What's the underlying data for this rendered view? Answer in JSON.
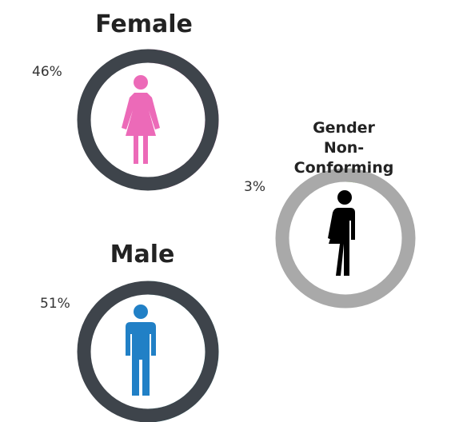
{
  "chart_data": [
    {
      "type": "donut",
      "title": "Female",
      "values": [
        46
      ],
      "value_labels": [
        "46%"
      ],
      "ylim": [
        0,
        100
      ],
      "color": "#ec6ab8",
      "track_color": "#3e444b"
    },
    {
      "type": "donut",
      "title": "Gender\nNon-Conforming",
      "values": [
        3
      ],
      "value_labels": [
        "3%"
      ],
      "ylim": [
        0,
        100
      ],
      "color": "#7cc242",
      "track_color": "#a9a9a9"
    },
    {
      "type": "donut",
      "title": "Male",
      "values": [
        51
      ],
      "value_labels": [
        "51%"
      ],
      "ylim": [
        0,
        100
      ],
      "color": "#5fd6de",
      "track_color": "#3e444b"
    }
  ]
}
